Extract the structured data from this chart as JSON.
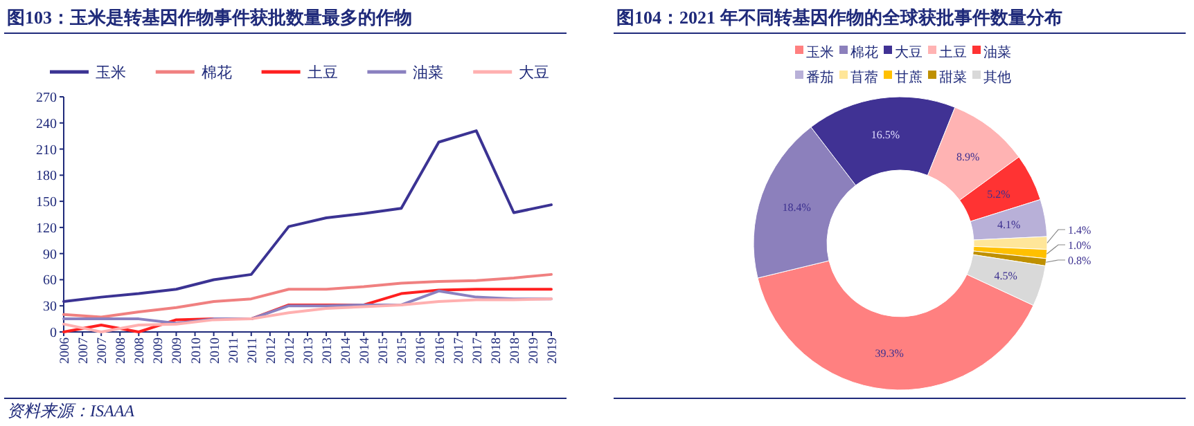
{
  "chart_data": [
    {
      "type": "line",
      "title": "图103：玉米是转基因作物事件获批数量最多的作物",
      "x": [
        2006,
        2007,
        2008,
        2009,
        2010,
        2011,
        2012,
        2013,
        2014,
        2015,
        2016,
        2017,
        2018,
        2019
      ],
      "series": [
        {
          "name": "玉米",
          "color": "#3b3393",
          "values": [
            35,
            40,
            44,
            49,
            60,
            66,
            121,
            131,
            136,
            142,
            218,
            231,
            137,
            146
          ]
        },
        {
          "name": "棉花",
          "color": "#f08080",
          "values": [
            20,
            17,
            23,
            28,
            35,
            38,
            49,
            49,
            52,
            56,
            58,
            59,
            62,
            66
          ]
        },
        {
          "name": "土豆",
          "color": "#ff2020",
          "values": [
            0,
            8,
            0,
            14,
            15,
            15,
            31,
            31,
            31,
            44,
            48,
            49,
            49,
            49
          ]
        },
        {
          "name": "油菜",
          "color": "#8a80c0",
          "values": [
            15,
            15,
            15,
            10,
            15,
            15,
            30,
            30,
            31,
            31,
            47,
            40,
            38,
            38
          ]
        },
        {
          "name": "大豆",
          "color": "#ffb0b0",
          "values": [
            9,
            0,
            8,
            9,
            14,
            15,
            22,
            27,
            29,
            31,
            35,
            37,
            37,
            38
          ]
        }
      ],
      "xlim": [
        2006,
        2019
      ],
      "xticks": [
        {
          "value": 2006,
          "label": "2006"
        },
        {
          "value": 2006.5,
          "label": "2007"
        },
        {
          "value": 2007,
          "label": "2007"
        },
        {
          "value": 2007.5,
          "label": "2008"
        },
        {
          "value": 2008,
          "label": "2008"
        },
        {
          "value": 2008.5,
          "label": "2009"
        },
        {
          "value": 2009,
          "label": "2009"
        },
        {
          "value": 2009.5,
          "label": "2010"
        },
        {
          "value": 2010,
          "label": "2010"
        },
        {
          "value": 2010.5,
          "label": "2011"
        },
        {
          "value": 2011,
          "label": "2011"
        },
        {
          "value": 2011.5,
          "label": "2012"
        },
        {
          "value": 2012,
          "label": "2012"
        },
        {
          "value": 2012.5,
          "label": "2013"
        },
        {
          "value": 2013,
          "label": "2013"
        },
        {
          "value": 2013.5,
          "label": "2014"
        },
        {
          "value": 2014,
          "label": "2014"
        },
        {
          "value": 2014.5,
          "label": "2015"
        },
        {
          "value": 2015,
          "label": "2015"
        },
        {
          "value": 2015.5,
          "label": "2016"
        },
        {
          "value": 2016,
          "label": "2016"
        },
        {
          "value": 2016.5,
          "label": "2017"
        },
        {
          "value": 2017,
          "label": "2017"
        },
        {
          "value": 2017.5,
          "label": "2018"
        },
        {
          "value": 2018,
          "label": "2018"
        },
        {
          "value": 2018.5,
          "label": "2019"
        },
        {
          "value": 2019,
          "label": "2019"
        }
      ],
      "ylim": [
        0,
        270
      ],
      "yticks": [
        0,
        30,
        60,
        90,
        120,
        150,
        180,
        210,
        240,
        270
      ],
      "legend": "top",
      "grid": false,
      "annotations": [
        "资料来源：ISAAA"
      ]
    },
    {
      "type": "donut",
      "title": "图104：2021 年不同转基因作物的全球获批事件数量分布",
      "categories": [
        "玉米",
        "棉花",
        "大豆",
        "土豆",
        "油菜",
        "番茄",
        "苜蓿",
        "甘蔗",
        "甜菜",
        "其他"
      ],
      "values": [
        39.3,
        18.4,
        16.5,
        8.9,
        5.2,
        4.1,
        1.4,
        1.0,
        0.8,
        4.5
      ],
      "colors": [
        "#ff8080",
        "#8c80bc",
        "#403294",
        "#ffb3b3",
        "#ff3333",
        "#b8b0d8",
        "#ffe699",
        "#ffc000",
        "#bf9000",
        "#d9d9d9"
      ],
      "value_labels": [
        "39.3%",
        "18.4%",
        "16.5%",
        "8.9%",
        "5.2%",
        "4.1%",
        "1.4%",
        "1.0%",
        "0.8%",
        "4.5%"
      ],
      "legend": "top"
    }
  ]
}
